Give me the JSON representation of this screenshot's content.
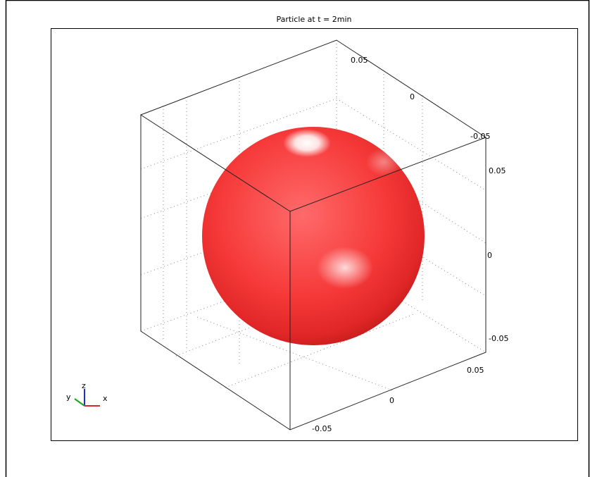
{
  "title": "Particle at t = 2min",
  "axes": {
    "top": [
      "0.05",
      "0",
      "-0.05"
    ],
    "right": [
      "0.05",
      "0",
      "-0.05"
    ],
    "bottom": [
      "0.05",
      "0",
      "-0.05"
    ]
  },
  "triad": {
    "x": "x",
    "y": "y",
    "z": "z"
  }
}
